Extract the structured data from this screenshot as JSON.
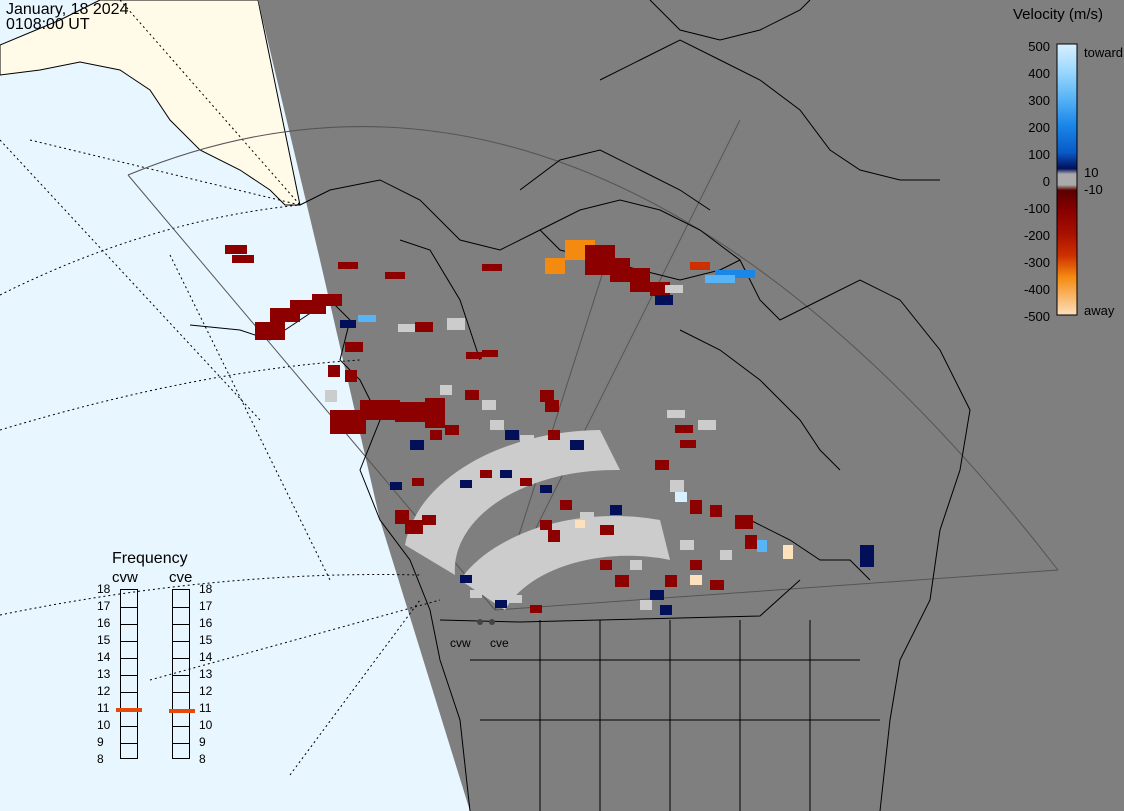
{
  "header": {
    "date": "January, 18 2024",
    "time": "0108:00 UT"
  },
  "colorbar": {
    "title": "Velocity (m/s)",
    "ticks": [
      "500",
      "400",
      "300",
      "200",
      "100",
      "0",
      "-100",
      "-200",
      "-300",
      "-400",
      "-500"
    ],
    "toward_label": "toward",
    "away_label": "away",
    "plus_threshold": "10",
    "minus_threshold": "-10",
    "colors": [
      "#d8f0ff",
      "#9cd8ff",
      "#58b4f5",
      "#1a86e8",
      "#0a5ac8",
      "#0a2a9a",
      "#02105a",
      "#aaaaaa",
      "#5a0000",
      "#8c0000",
      "#a81000",
      "#cc3000",
      "#e65a00",
      "#f58a10",
      "#fbb050",
      "#fde0bc"
    ]
  },
  "frequency": {
    "title": "Frequency",
    "radars": [
      {
        "name": "cvw",
        "value_mhz": 10.9
      },
      {
        "name": "cve",
        "value_mhz": 10.8
      }
    ],
    "scale": [
      "18",
      "17",
      "16",
      "15",
      "14",
      "13",
      "12",
      "11",
      "10",
      "9",
      "8"
    ]
  },
  "sites": [
    {
      "name": "cvw"
    },
    {
      "name": "cve"
    }
  ],
  "map_colors": {
    "night": "#7f7f7f",
    "ocean_day": "#e8f6ff",
    "land_day": "#fffbe8",
    "ground_scatter": "#cccccc"
  }
}
